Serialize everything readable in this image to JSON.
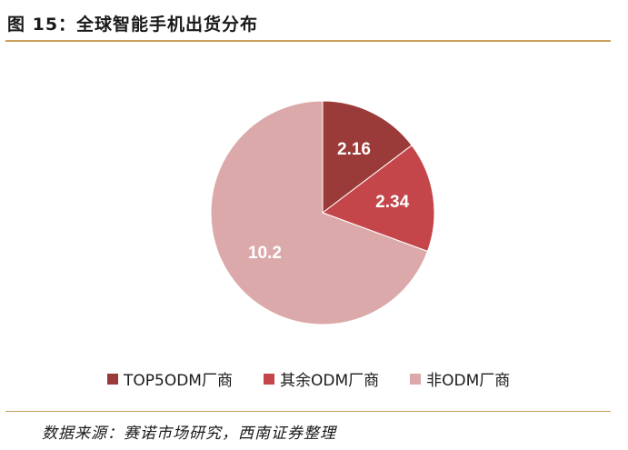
{
  "figure": {
    "title": "图 15：全球智能手机出货分布",
    "source": "数据来源：赛诺市场研究，西南证券整理"
  },
  "chart_data": {
    "type": "pie",
    "title": "",
    "start_angle_deg": 0,
    "direction": "clockwise",
    "legend_position": "bottom",
    "slices": [
      {
        "label": "TOP5ODM厂商",
        "value": 2.16,
        "value_label": "2.16",
        "color": "#9b3b39",
        "label_color": "#ffffff"
      },
      {
        "label": "其余ODM厂商",
        "value": 2.34,
        "value_label": "2.34",
        "color": "#c4464a",
        "label_color": "#ffffff"
      },
      {
        "label": "非ODM厂商",
        "value": 10.2,
        "value_label": "10.2",
        "color": "#dca9aa",
        "label_color": "#ffffff"
      }
    ]
  }
}
